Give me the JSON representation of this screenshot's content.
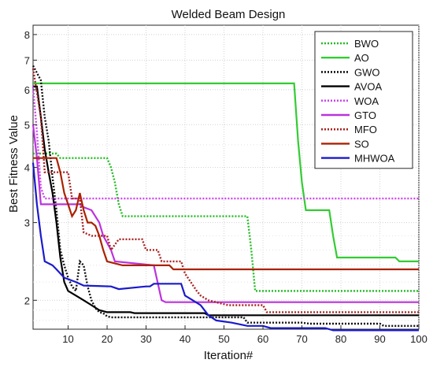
{
  "chart_data": {
    "type": "line",
    "title": "Welded Beam Design",
    "xlabel": "Iteration#",
    "ylabel": "Best Fitness Value",
    "xlim": [
      1,
      100
    ],
    "ylim": [
      1.72,
      8.4
    ],
    "yscale": "log",
    "grid": true,
    "legend_position": "top-right",
    "xticks": [
      10,
      20,
      30,
      40,
      50,
      60,
      70,
      80,
      90,
      100
    ],
    "yticks": [
      2,
      3,
      4,
      5,
      6,
      7,
      8
    ],
    "series": [
      {
        "name": "BWO",
        "color": "#22bb22",
        "style": "dotted",
        "points": [
          [
            1,
            4.3
          ],
          [
            7,
            4.3
          ],
          [
            8,
            4.2
          ],
          [
            20,
            4.2
          ],
          [
            21,
            4.0
          ],
          [
            22,
            3.7
          ],
          [
            23,
            3.3
          ],
          [
            24,
            3.1
          ],
          [
            56,
            3.1
          ],
          [
            57,
            2.6
          ],
          [
            58,
            2.1
          ],
          [
            100,
            2.1
          ]
        ]
      },
      {
        "name": "AO",
        "color": "#33cc33",
        "style": "solid",
        "points": [
          [
            1,
            6.2
          ],
          [
            68,
            6.2
          ],
          [
            69,
            4.6
          ],
          [
            70,
            3.7
          ],
          [
            71,
            3.2
          ],
          [
            77,
            3.2
          ],
          [
            78,
            2.8
          ],
          [
            79,
            2.5
          ],
          [
            94,
            2.5
          ],
          [
            95,
            2.45
          ],
          [
            100,
            2.45
          ]
        ]
      },
      {
        "name": "GWO",
        "color": "#111111",
        "style": "dotted",
        "points": [
          [
            1,
            6.8
          ],
          [
            3,
            6.3
          ],
          [
            4,
            5.2
          ],
          [
            5,
            4.6
          ],
          [
            6,
            3.8
          ],
          [
            7,
            3.2
          ],
          [
            8,
            2.6
          ],
          [
            9,
            2.4
          ],
          [
            10,
            2.25
          ],
          [
            11,
            2.15
          ],
          [
            12,
            2.1
          ],
          [
            13,
            2.45
          ],
          [
            14,
            2.4
          ],
          [
            15,
            2.15
          ],
          [
            16,
            2.0
          ],
          [
            17,
            1.92
          ],
          [
            18,
            1.88
          ],
          [
            19,
            1.87
          ],
          [
            20,
            1.84
          ],
          [
            21,
            1.83
          ],
          [
            55,
            1.83
          ],
          [
            56,
            1.78
          ],
          [
            70,
            1.78
          ],
          [
            72,
            1.77
          ],
          [
            90,
            1.77
          ],
          [
            91,
            1.75
          ],
          [
            100,
            1.75
          ]
        ]
      },
      {
        "name": "AVOA",
        "color": "#000000",
        "style": "solid",
        "points": [
          [
            1,
            6.1
          ],
          [
            2,
            6.1
          ],
          [
            3,
            5.2
          ],
          [
            4,
            4.4
          ],
          [
            5,
            3.9
          ],
          [
            6,
            3.5
          ],
          [
            7,
            3.0
          ],
          [
            8,
            2.5
          ],
          [
            9,
            2.2
          ],
          [
            10,
            2.1
          ],
          [
            12,
            2.05
          ],
          [
            14,
            2.0
          ],
          [
            16,
            1.95
          ],
          [
            18,
            1.9
          ],
          [
            20,
            1.88
          ],
          [
            26,
            1.88
          ],
          [
            27,
            1.87
          ],
          [
            45,
            1.87
          ],
          [
            46,
            1.85
          ],
          [
            100,
            1.85
          ]
        ]
      },
      {
        "name": "WOA",
        "color": "#cc44ee",
        "style": "dotted",
        "points": [
          [
            1,
            6.1
          ],
          [
            2,
            4.8
          ],
          [
            3,
            3.6
          ],
          [
            4,
            3.4
          ],
          [
            100,
            3.4
          ]
        ]
      },
      {
        "name": "GTO",
        "color": "#bb33dd",
        "style": "solid",
        "points": [
          [
            1,
            5.0
          ],
          [
            2,
            4.2
          ],
          [
            3,
            3.3
          ],
          [
            13,
            3.3
          ],
          [
            14,
            3.25
          ],
          [
            16,
            3.2
          ],
          [
            18,
            3.0
          ],
          [
            19,
            2.8
          ],
          [
            21,
            2.6
          ],
          [
            22,
            2.45
          ],
          [
            32,
            2.4
          ],
          [
            34,
            2.0
          ],
          [
            35,
            1.98
          ],
          [
            100,
            1.98
          ]
        ]
      },
      {
        "name": "MFO",
        "color": "#aa2222",
        "style": "dotted",
        "points": [
          [
            1,
            6.7
          ],
          [
            3,
            5.2
          ],
          [
            4,
            3.9
          ],
          [
            10,
            3.9
          ],
          [
            11,
            3.4
          ],
          [
            13,
            3.4
          ],
          [
            14,
            2.85
          ],
          [
            16,
            2.8
          ],
          [
            20,
            2.8
          ],
          [
            21,
            2.6
          ],
          [
            23,
            2.75
          ],
          [
            29,
            2.75
          ],
          [
            30,
            2.6
          ],
          [
            33,
            2.6
          ],
          [
            34,
            2.45
          ],
          [
            39,
            2.45
          ],
          [
            40,
            2.3
          ],
          [
            43,
            2.1
          ],
          [
            44,
            2.05
          ],
          [
            46,
            2.0
          ],
          [
            51,
            1.95
          ],
          [
            60,
            1.95
          ],
          [
            61,
            1.88
          ],
          [
            100,
            1.88
          ]
        ]
      },
      {
        "name": "SO",
        "color": "#aa2200",
        "style": "solid",
        "points": [
          [
            1,
            4.2
          ],
          [
            7,
            4.2
          ],
          [
            8,
            3.9
          ],
          [
            9,
            3.5
          ],
          [
            10,
            3.3
          ],
          [
            11,
            3.1
          ],
          [
            12,
            3.2
          ],
          [
            13,
            3.5
          ],
          [
            14,
            3.2
          ],
          [
            15,
            3.0
          ],
          [
            16,
            3.0
          ],
          [
            17,
            2.95
          ],
          [
            18,
            2.8
          ],
          [
            19,
            2.6
          ],
          [
            20,
            2.45
          ],
          [
            24,
            2.4
          ],
          [
            36,
            2.4
          ],
          [
            37,
            2.35
          ],
          [
            100,
            2.35
          ]
        ]
      },
      {
        "name": "MHWOA",
        "color": "#1a1acc",
        "style": "solid",
        "points": [
          [
            1,
            4.1
          ],
          [
            2,
            3.3
          ],
          [
            3,
            2.8
          ],
          [
            4,
            2.45
          ],
          [
            6,
            2.4
          ],
          [
            7,
            2.35
          ],
          [
            9,
            2.25
          ],
          [
            12,
            2.2
          ],
          [
            14,
            2.16
          ],
          [
            21,
            2.15
          ],
          [
            23,
            2.12
          ],
          [
            30,
            2.15
          ],
          [
            31,
            2.15
          ],
          [
            32,
            2.18
          ],
          [
            39,
            2.18
          ],
          [
            40,
            2.05
          ],
          [
            42,
            2.0
          ],
          [
            44,
            1.95
          ],
          [
            46,
            1.85
          ],
          [
            48,
            1.8
          ],
          [
            52,
            1.78
          ],
          [
            56,
            1.75
          ],
          [
            60,
            1.75
          ],
          [
            62,
            1.73
          ],
          [
            76,
            1.73
          ],
          [
            78,
            1.71
          ],
          [
            100,
            1.71
          ]
        ]
      }
    ]
  }
}
